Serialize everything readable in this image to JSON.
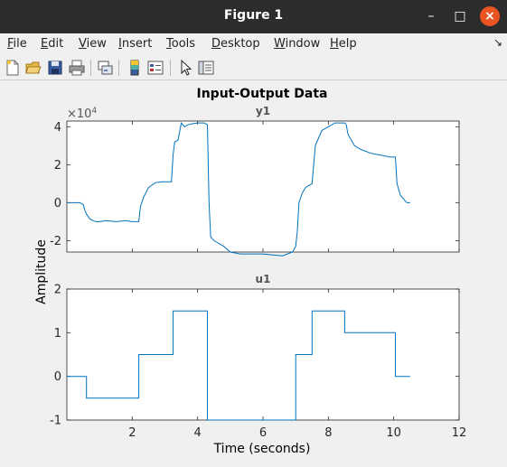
{
  "window": {
    "title": "Figure 1",
    "minimize_icon": "minimize-icon",
    "maximize_icon": "maximize-icon",
    "close_icon": "close-icon",
    "close_color": "#e95420"
  },
  "menubar": {
    "items": [
      {
        "accel": "F",
        "rest": "ile"
      },
      {
        "accel": "E",
        "rest": "dit"
      },
      {
        "accel": "V",
        "rest": "iew"
      },
      {
        "accel": "I",
        "rest": "nsert"
      },
      {
        "accel": "T",
        "rest": "ools"
      },
      {
        "accel": "D",
        "rest": "esktop"
      },
      {
        "accel": "W",
        "rest": "indow"
      },
      {
        "accel": "H",
        "rest": "elp"
      }
    ],
    "overflow_icon": "dock-arrow-icon"
  },
  "toolbar": {
    "buttons": [
      "new-figure-icon",
      "open-file-icon",
      "save-icon",
      "print-icon",
      "link-plot-icon",
      "colorbar-icon",
      "legend-icon",
      "edit-plot-pointer-icon",
      "property-inspector-icon"
    ]
  },
  "chart_data": {
    "type": "line",
    "title": "Input-Output Data",
    "xlabel": "Time (seconds)",
    "ylabel": "Amplitude",
    "line_color": "#0072bd",
    "xlim": [
      0,
      12
    ],
    "xticks": [
      2,
      4,
      6,
      8,
      10,
      12
    ],
    "subplots": [
      {
        "name": "y1",
        "ylim": [
          -2.6,
          4.3
        ],
        "yticks": [
          -2,
          0,
          2,
          4
        ],
        "exponent_label": "×10",
        "exponent_power": "4",
        "show_xticklabels": false,
        "x": [
          0.0,
          0.4,
          0.5,
          0.55,
          0.6,
          0.7,
          0.8,
          0.9,
          1.0,
          1.2,
          1.5,
          1.8,
          2.0,
          2.2,
          2.25,
          2.35,
          2.5,
          2.7,
          2.9,
          3.2,
          3.25,
          3.3,
          3.4,
          3.5,
          3.6,
          3.7,
          3.8,
          4.0,
          4.2,
          4.3,
          4.35,
          4.4,
          4.5,
          4.6,
          4.8,
          5.0,
          5.3,
          5.7,
          6.0,
          6.3,
          6.6,
          6.9,
          7.0,
          7.05,
          7.1,
          7.2,
          7.3,
          7.5,
          7.55,
          7.6,
          7.8,
          8.0,
          8.2,
          8.5,
          8.55,
          8.6,
          8.8,
          9.0,
          9.3,
          9.6,
          9.9,
          10.05,
          10.1,
          10.2,
          10.3,
          10.4,
          10.5
        ],
        "y": [
          0,
          0,
          -0.1,
          -0.4,
          -0.6,
          -0.85,
          -0.95,
          -1.0,
          -1.0,
          -0.95,
          -1.0,
          -0.95,
          -1.0,
          -1.0,
          -0.2,
          0.3,
          0.8,
          1.05,
          1.1,
          1.1,
          2.5,
          3.2,
          3.3,
          4.2,
          4.0,
          4.1,
          4.15,
          4.2,
          4.2,
          4.1,
          0.0,
          -1.8,
          -2.0,
          -2.1,
          -2.3,
          -2.6,
          -2.7,
          -2.7,
          -2.7,
          -2.75,
          -2.8,
          -2.6,
          -2.3,
          -1.5,
          0.0,
          0.5,
          0.8,
          1.0,
          2.0,
          3.0,
          3.8,
          4.0,
          4.2,
          4.2,
          4.1,
          3.6,
          3.0,
          2.8,
          2.6,
          2.5,
          2.4,
          2.4,
          1.0,
          0.4,
          0.2,
          0.0,
          0.0
        ]
      },
      {
        "name": "u1",
        "ylim": [
          -1,
          2
        ],
        "yticks": [
          -1,
          0,
          1,
          2
        ],
        "show_xticklabels": true,
        "x": [
          0.0,
          0.6,
          0.6,
          2.2,
          2.2,
          3.25,
          3.25,
          4.3,
          4.3,
          7.0,
          7.0,
          7.5,
          7.5,
          8.5,
          8.5,
          10.05,
          10.05,
          10.5
        ],
        "y": [
          0,
          0,
          -0.5,
          -0.5,
          0.5,
          0.5,
          1.5,
          1.5,
          -1,
          -1,
          0.5,
          0.5,
          1.5,
          1.5,
          1.0,
          1.0,
          0,
          0
        ]
      }
    ]
  }
}
